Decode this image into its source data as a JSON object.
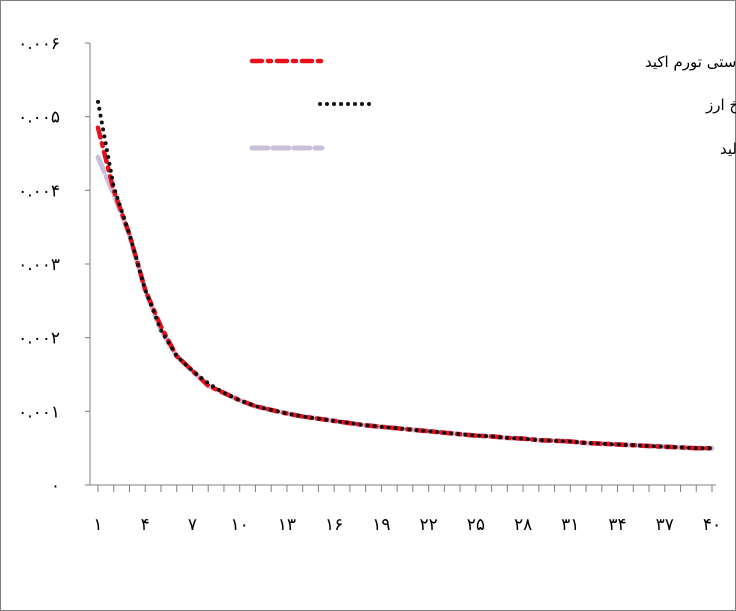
{
  "chart_data": {
    "type": "line",
    "title": "",
    "xlabel": "",
    "ylabel": "",
    "x": [
      1,
      2,
      3,
      4,
      5,
      6,
      7,
      8,
      9,
      10,
      11,
      12,
      13,
      14,
      15,
      16,
      17,
      18,
      19,
      20,
      21,
      22,
      23,
      24,
      25,
      26,
      27,
      28,
      29,
      30,
      31,
      32,
      33,
      34,
      35,
      36,
      37,
      38,
      39,
      40
    ],
    "xlim": [
      1,
      40
    ],
    "ylim": [
      0,
      0.006
    ],
    "y_ticks": [
      0,
      0.001,
      0.002,
      0.003,
      0.004,
      0.005,
      0.006
    ],
    "y_tick_labels": [
      "۰",
      "۰.۰۰۱",
      "۰.۰۰۲",
      "۰.۰۰۳",
      "۰.۰۰۴",
      "۰.۰۰۵",
      "۰.۰۰۶"
    ],
    "x_ticks": [
      1,
      4,
      7,
      10,
      13,
      16,
      19,
      22,
      25,
      28,
      31,
      34,
      37,
      40
    ],
    "x_tick_labels": [
      "۱",
      "۴",
      "۷",
      "۱۰",
      "۱۳",
      "۱۶",
      "۱۹",
      "۲۲",
      "۲۵",
      "۲۸",
      "۳۱",
      "۳۴",
      "۳۷",
      "۴۰"
    ],
    "grid": false,
    "legend_position": "top-right",
    "series": [
      {
        "name": "حساب جاری–قاعده سیاستی تورم اکید",
        "color": "#e8111b",
        "style": "dash-dot",
        "values": [
          0.00485,
          0.004,
          0.0034,
          0.00265,
          0.00215,
          0.00175,
          0.00155,
          0.00135,
          0.00125,
          0.00115,
          0.00107,
          0.00102,
          0.00097,
          0.00093,
          0.0009,
          0.00087,
          0.00084,
          0.00081,
          0.00079,
          0.00077,
          0.00075,
          0.00073,
          0.00071,
          0.00069,
          0.00067,
          0.00066,
          0.00064,
          0.00063,
          0.00061,
          0.0006,
          0.00059,
          0.00057,
          0.00056,
          0.00055,
          0.00054,
          0.00053,
          0.00052,
          0.00051,
          0.0005,
          0.0005
        ]
      },
      {
        "name": "حساب جاری–قاعده سیاستی تورم و نرخ ارز",
        "color": "#111111",
        "style": "dotted",
        "values": [
          0.0052,
          0.00405,
          0.0034,
          0.00265,
          0.0021,
          0.00175,
          0.00155,
          0.00138,
          0.00125,
          0.00115,
          0.00107,
          0.00102,
          0.00097,
          0.00093,
          0.0009,
          0.00087,
          0.00084,
          0.00081,
          0.00079,
          0.00077,
          0.00075,
          0.00073,
          0.00071,
          0.00069,
          0.00067,
          0.00066,
          0.00064,
          0.00063,
          0.00061,
          0.0006,
          0.00059,
          0.00057,
          0.00056,
          0.00055,
          0.00054,
          0.00053,
          0.00052,
          0.00051,
          0.0005,
          0.0005
        ]
      },
      {
        "name": "حساب جاری–قاعده سیاستی تورم و شکاف تولید",
        "color": "#c9c0d8",
        "style": "long-dash",
        "values": [
          0.00445,
          0.00395,
          0.0034,
          0.00265,
          0.0021,
          0.00175,
          0.00155,
          0.00135,
          0.00125,
          0.00115,
          0.00107,
          0.00102,
          0.00097,
          0.00093,
          0.0009,
          0.00087,
          0.00084,
          0.00081,
          0.00079,
          0.00077,
          0.00075,
          0.00073,
          0.00071,
          0.00069,
          0.00067,
          0.00066,
          0.00064,
          0.00063,
          0.00061,
          0.0006,
          0.00059,
          0.00057,
          0.00056,
          0.00055,
          0.00054,
          0.00053,
          0.00052,
          0.00051,
          0.0005,
          0.0005
        ]
      }
    ]
  }
}
